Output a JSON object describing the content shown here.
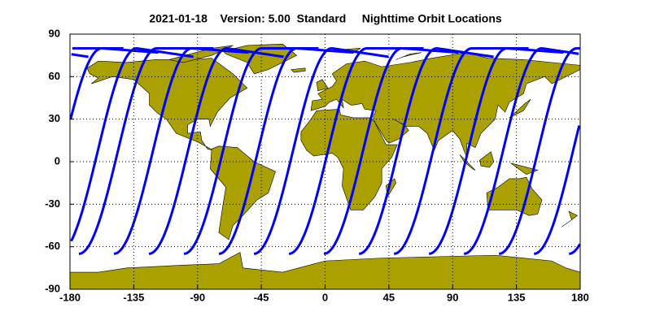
{
  "chart_data": {
    "type": "map",
    "title": "2021-01-18    Version: 5.00  Standard     Nighttime Orbit Locations",
    "xlim": [
      -180,
      180
    ],
    "ylim": [
      -90,
      90
    ],
    "xticks": [
      -180,
      -135,
      -90,
      -45,
      0,
      45,
      90,
      135,
      180
    ],
    "yticks": [
      -90,
      -60,
      -30,
      0,
      30,
      60,
      90
    ],
    "grid": true,
    "land_color": "#aaa000",
    "orbit_color": "#0000ff"
  }
}
